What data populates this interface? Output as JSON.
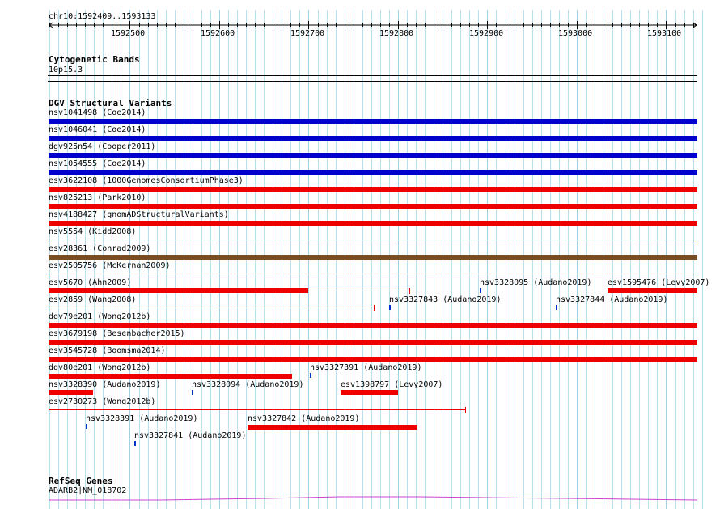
{
  "ruler": {
    "coordinate": "chr10:1592409..1593133",
    "ticks": [
      "1592500",
      "1592600",
      "1592700",
      "1592800",
      "1592900",
      "1593000",
      "1593100"
    ]
  },
  "cytoband": {
    "title": "Cytogenetic Bands",
    "band": "10p15.3"
  },
  "dgv": {
    "title": "DGV Structural Variants",
    "colors": {
      "blue": "#0000cc",
      "red": "#ee0000",
      "brown": "#7a4e24"
    },
    "features": [
      {
        "label": "nsv1041498 (Coe2014)"
      },
      {
        "label": "nsv1046041 (Coe2014)"
      },
      {
        "label": "dgv925n54 (Cooper2011)"
      },
      {
        "label": "nsv1054555 (Coe2014)"
      },
      {
        "label": "esv3622108 (1000GenomesConsortiumPhase3)"
      },
      {
        "label": "nsv825213 (Park2010)"
      },
      {
        "label": "nsv4188427 (gnomADStructuralVariants)"
      },
      {
        "label": "nsv5554 (Kidd2008)"
      },
      {
        "label": "esv28361 (Conrad2009)"
      },
      {
        "label": "esv2505756 (McKernan2009)"
      },
      {
        "label": "esv5670 (Ahn2009)"
      },
      {
        "label": "nsv3328095 (Audano2019)"
      },
      {
        "label": "esv1595476 (Levy2007)"
      },
      {
        "label": "esv2859 (Wang2008)"
      },
      {
        "label": "nsv3327843 (Audano2019)"
      },
      {
        "label": "nsv3327844 (Audano2019)"
      },
      {
        "label": "dgv79e201 (Wong2012b)"
      },
      {
        "label": "esv3679198 (Besenbacher2015)"
      },
      {
        "label": "esv3545728 (Boomsma2014)"
      },
      {
        "label": "dgv80e201 (Wong2012b)"
      },
      {
        "label": "nsv3327391 (Audano2019)"
      },
      {
        "label": "nsv3328390 (Audano2019)"
      },
      {
        "label": "nsv3328094 (Audano2019)"
      },
      {
        "label": "esv1398797 (Levy2007)"
      },
      {
        "label": "esv2730273 (Wong2012b)"
      },
      {
        "label": "nsv3328391 (Audano2019)"
      },
      {
        "label": "nsv3327842 (Audano2019)"
      },
      {
        "label": "nsv3327841 (Audano2019)"
      }
    ]
  },
  "refseq": {
    "title": "RefSeq Genes",
    "gene": "ADARB2|NM_018702",
    "color": "#cc44cc"
  }
}
